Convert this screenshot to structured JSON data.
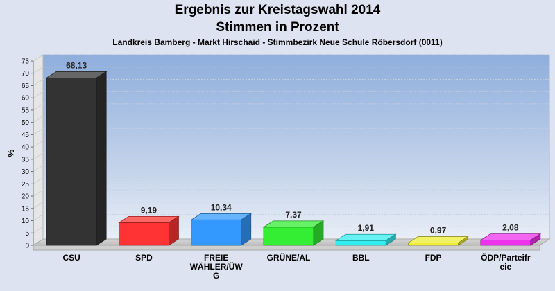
{
  "chart_data": {
    "type": "bar",
    "title": "Ergebnis zur Kreistagswahl 2014",
    "subtitle": "Stimmen in Prozent",
    "caption": "Landkreis Bamberg - Markt Hirschaid - Stimmbezirk Neue Schule Röbersdorf (0011)",
    "ylabel": "%",
    "xlabel": "",
    "ylim": [
      0,
      75
    ],
    "yticks": [
      0,
      5,
      10,
      15,
      20,
      25,
      30,
      35,
      40,
      45,
      50,
      55,
      60,
      65,
      70,
      75
    ],
    "grid": true,
    "categories": [
      [
        "CSU"
      ],
      [
        "SPD"
      ],
      [
        "FREIE",
        "WÄHLER/ÜW",
        "G"
      ],
      [
        "GRÜNE/AL"
      ],
      [
        "BBL"
      ],
      [
        "FDP"
      ],
      [
        "ÖDP/Parteifr",
        "eie"
      ]
    ],
    "values": [
      68.13,
      9.19,
      10.34,
      7.37,
      1.91,
      0.97,
      2.08
    ],
    "value_labels": [
      "68,13",
      "9,19",
      "10,34",
      "7,37",
      "1,91",
      "0,97",
      "2,08"
    ],
    "colors": [
      "#333333",
      "#ff3333",
      "#3399ff",
      "#33ee33",
      "#33eeee",
      "#eeee33",
      "#ee33ee"
    ]
  }
}
